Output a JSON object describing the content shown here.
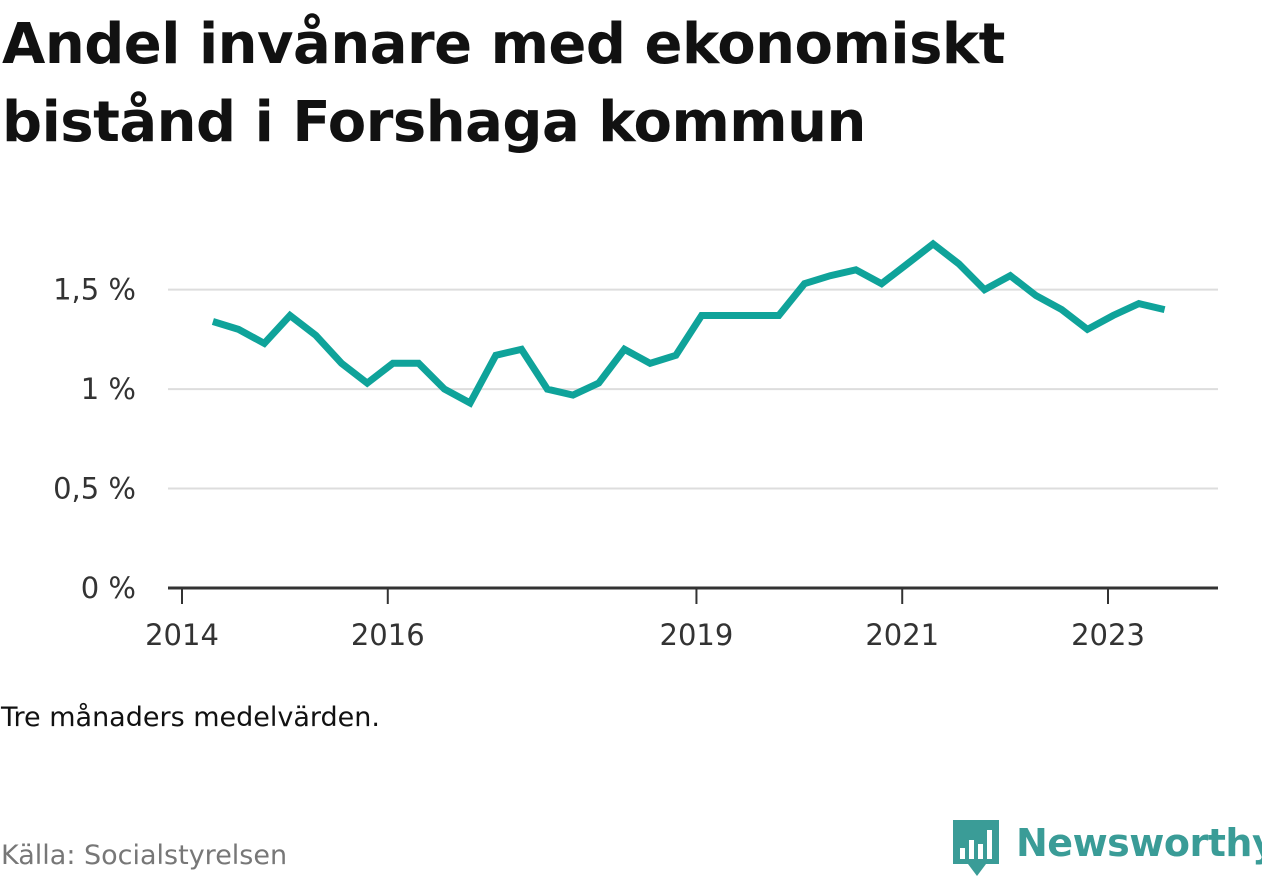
{
  "title": "Andel invånare med ekonomiskt bistånd i Forshaga kommun",
  "note": "Tre månaders medelvärden.",
  "source": "Källa: Socialstyrelsen",
  "brand": {
    "name": "Newsworthy",
    "logo_icon": "speech-bubble-bars-icon",
    "color": "#3a9c97"
  },
  "chart_data": {
    "type": "line",
    "title": "Andel invånare med ekonomiskt bistånd i Forshaga kommun",
    "xlabel": "",
    "ylabel": "",
    "ylim": [
      0,
      1.8
    ],
    "xlim": [
      2013.95,
      2024.0
    ],
    "grid": true,
    "legend": "none",
    "line_color": "#0fa39a",
    "y_ticks": [
      {
        "value": 0,
        "label": "0 %"
      },
      {
        "value": 0.5,
        "label": "0,5 %"
      },
      {
        "value": 1,
        "label": "1 %"
      },
      {
        "value": 1.5,
        "label": "1,5 %"
      }
    ],
    "x_ticks": [
      {
        "value": 2014.0,
        "label": "2014"
      },
      {
        "value": 2016.0,
        "label": "2016"
      },
      {
        "value": 2019.0,
        "label": "2019"
      },
      {
        "value": 2021.0,
        "label": "2021"
      },
      {
        "value": 2023.0,
        "label": "2023"
      }
    ],
    "series": [
      {
        "x": [
          2014.3,
          2014.55,
          2014.8,
          2015.05,
          2015.3,
          2015.55,
          2015.8,
          2016.05,
          2016.3,
          2016.55,
          2016.8,
          2017.05,
          2017.3,
          2017.55,
          2017.8,
          2018.05,
          2018.3,
          2018.55,
          2018.8,
          2019.05,
          2019.3,
          2019.55,
          2019.8,
          2020.05,
          2020.3,
          2020.55,
          2020.8,
          2021.05,
          2021.3,
          2021.55,
          2021.8,
          2022.05,
          2022.3,
          2022.55,
          2022.8,
          2023.05,
          2023.3,
          2023.55
        ],
        "y": [
          1.34,
          1.3,
          1.23,
          1.37,
          1.27,
          1.13,
          1.03,
          1.13,
          1.13,
          1.0,
          0.93,
          1.17,
          1.2,
          1.0,
          0.97,
          1.03,
          1.2,
          1.13,
          1.17,
          1.37,
          1.37,
          1.37,
          1.37,
          1.53,
          1.57,
          1.6,
          1.53,
          1.63,
          1.73,
          1.63,
          1.5,
          1.57,
          1.47,
          1.4,
          1.3,
          1.37,
          1.43,
          1.4
        ]
      }
    ]
  }
}
